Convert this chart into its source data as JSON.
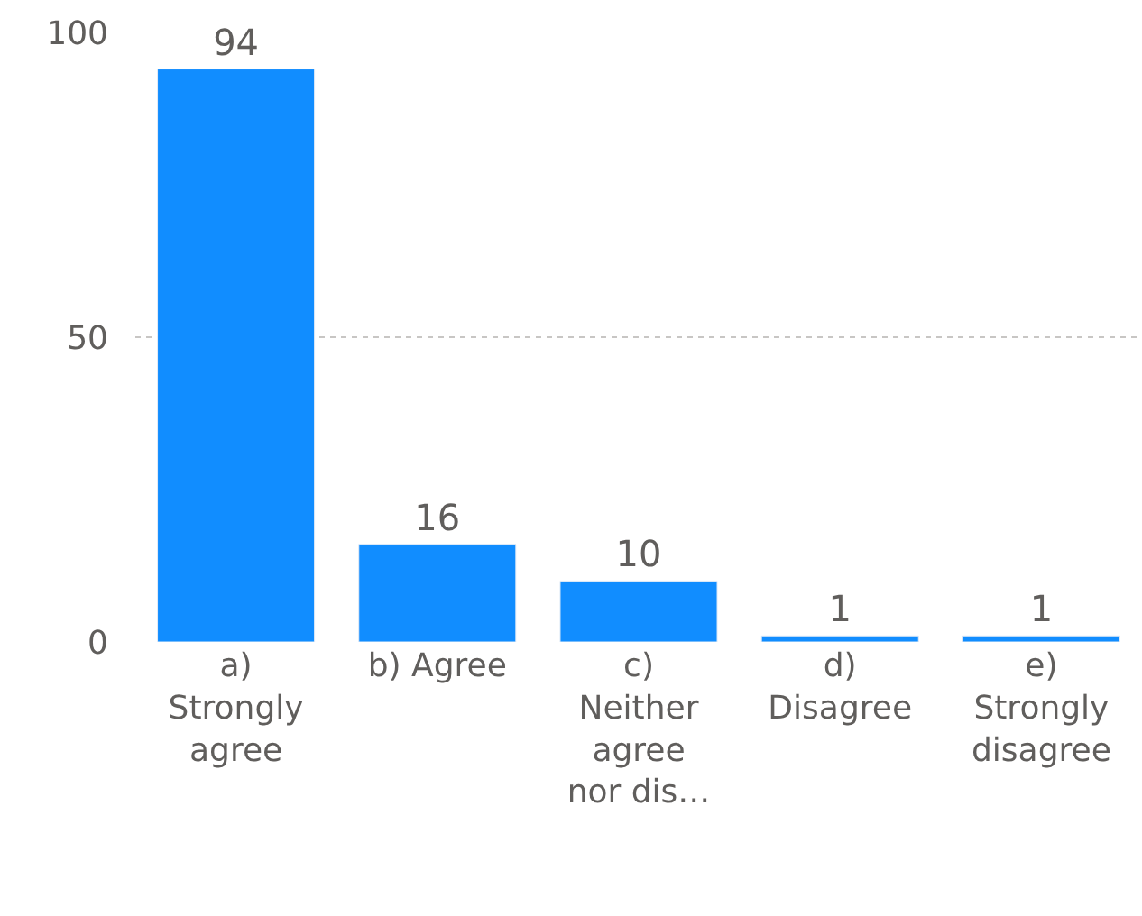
{
  "chart_data": {
    "type": "bar",
    "categories": [
      "a) Strongly agree",
      "b) Agree",
      "c) Neither agree nor dis…",
      "d) Disagree",
      "e) Strongly disagree"
    ],
    "values": [
      94,
      16,
      10,
      1,
      1
    ],
    "color": "#118dff",
    "ylim": [
      0,
      100
    ],
    "yticks": [
      0,
      50,
      100
    ],
    "grid": "y",
    "data_labels": true
  }
}
